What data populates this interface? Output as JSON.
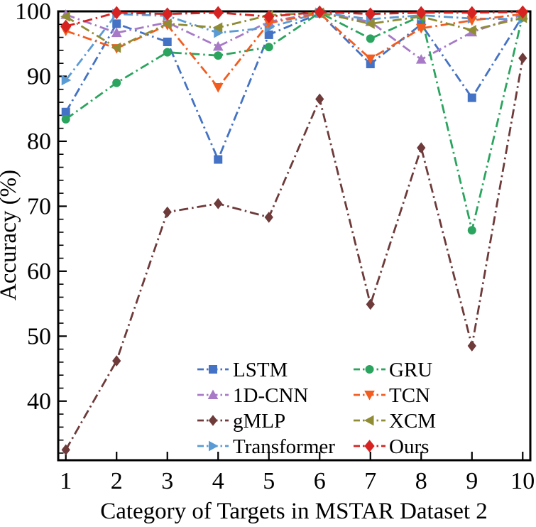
{
  "figure": {
    "xlabel": "Category of Targets in MSTAR Dataset 2",
    "ylabel": "Accuracy (%)"
  },
  "chart_data": {
    "type": "line",
    "title": "",
    "xlabel": "Category of Targets in MSTAR Dataset 2",
    "ylabel": "Accuracy (%)",
    "x": [
      1,
      2,
      3,
      4,
      5,
      6,
      7,
      8,
      9,
      10
    ],
    "xticks": [
      1,
      2,
      3,
      4,
      5,
      6,
      7,
      8,
      9,
      10
    ],
    "yticks": [
      40,
      50,
      60,
      70,
      80,
      90,
      100
    ],
    "xlim": [
      0.85,
      10.15
    ],
    "ylim": [
      30.9,
      100
    ],
    "grid": false,
    "line_style": "dash-dot",
    "legend_position": "inside lower center-right, two columns, no frame",
    "series": [
      {
        "name": "LSTM",
        "color": "#4472C4",
        "marker": "square",
        "values": [
          84.5,
          98.1,
          95.3,
          77.2,
          96.4,
          99.7,
          91.9,
          98.0,
          86.7,
          99.3
        ]
      },
      {
        "name": "1D-CNN",
        "color": "#A779C7",
        "marker": "triangle-up",
        "values": [
          99.5,
          96.7,
          98.3,
          94.6,
          98.4,
          99.8,
          98.4,
          92.6,
          96.8,
          99.5
        ]
      },
      {
        "name": "gMLP",
        "color": "#6E3A3A",
        "marker": "diamond",
        "values": [
          32.5,
          46.2,
          69.1,
          70.4,
          68.3,
          86.5,
          54.9,
          79.0,
          48.5,
          92.8
        ]
      },
      {
        "name": "Transformer",
        "color": "#5B9BD5",
        "marker": "triangle-right",
        "values": [
          89.4,
          99.6,
          99.3,
          96.7,
          97.5,
          99.8,
          98.8,
          99.4,
          98.9,
          98.8
        ]
      },
      {
        "name": "GRU",
        "color": "#2AA45E",
        "marker": "circle",
        "values": [
          83.4,
          89.0,
          93.7,
          93.2,
          94.5,
          99.8,
          95.8,
          99.3,
          66.3,
          99.4
        ]
      },
      {
        "name": "TCN",
        "color": "#F25C1F",
        "marker": "triangle-down",
        "values": [
          97.0,
          94.3,
          97.9,
          88.3,
          98.2,
          99.7,
          92.7,
          97.4,
          98.6,
          99.6
        ]
      },
      {
        "name": "XCM",
        "color": "#8F8C34",
        "marker": "triangle-left",
        "values": [
          99.2,
          94.4,
          98.1,
          97.5,
          99.4,
          99.8,
          98.1,
          99.2,
          97.1,
          99.0
        ]
      },
      {
        "name": "Ours",
        "color": "#D62322",
        "marker": "diamond",
        "values": [
          97.7,
          99.8,
          99.6,
          99.8,
          99.2,
          99.9,
          99.6,
          99.8,
          99.8,
          99.9
        ]
      }
    ],
    "legend_columns": [
      [
        "LSTM",
        "1D-CNN",
        "gMLP",
        "Transformer"
      ],
      [
        "GRU",
        "TCN",
        "XCM",
        "Ours"
      ]
    ]
  }
}
